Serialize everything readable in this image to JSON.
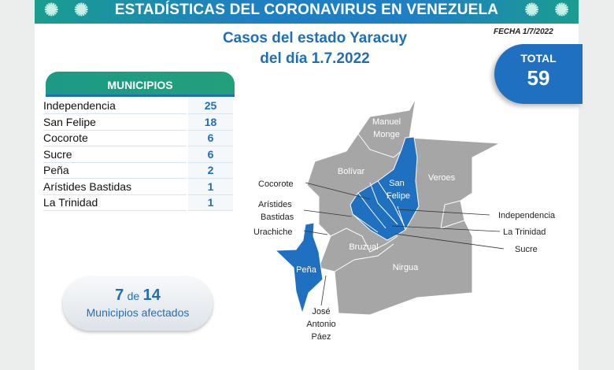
{
  "banner": {
    "title": "ESTADÍSTICAS DEL CORONAVIRUS EN VENEZUELA"
  },
  "header": {
    "title_line1": "Casos del estado Yaracuy",
    "title_line2": "del día 1.7.2022",
    "fecha": "FECHA 1/7/2022"
  },
  "total": {
    "label": "TOTAL",
    "value": "59"
  },
  "municipios": {
    "header": "MUNICIPIOS",
    "rows": [
      {
        "name": "Independencia",
        "cases": "25"
      },
      {
        "name": "San Felipe",
        "cases": "18"
      },
      {
        "name": "Cocorote",
        "cases": "6"
      },
      {
        "name": "Sucre",
        "cases": "6"
      },
      {
        "name": "Peña",
        "cases": "2"
      },
      {
        "name": "Arístides Bastidas",
        "cases": "1"
      },
      {
        "name": "La Trinidad",
        "cases": "1"
      }
    ]
  },
  "affected": {
    "count": "7",
    "of": "de",
    "total": "14",
    "label": "Municipios afectados"
  },
  "map": {
    "colors": {
      "affected": "#1f70c1",
      "unaffected": "#a6a6a6"
    },
    "inner_labels": {
      "manuel": "Manuel",
      "monge": "Monge",
      "bolivar": "Bolívar",
      "veroes": "Veroes",
      "san": "San",
      "felipe": "Felipe",
      "bruzual": "Bruzual",
      "nirgua": "Nirgua",
      "pena": "Peña"
    },
    "callouts": {
      "cocorote": "Cocorote",
      "aristides": "Arístides",
      "bastidas": "Bastidas",
      "urachiche": "Urachiche",
      "independencia": "Independencia",
      "trinidad": "La Trinidad",
      "sucre": "Sucre",
      "jose": "José",
      "antonio": "Antonio",
      "paez": "Páez"
    }
  }
}
